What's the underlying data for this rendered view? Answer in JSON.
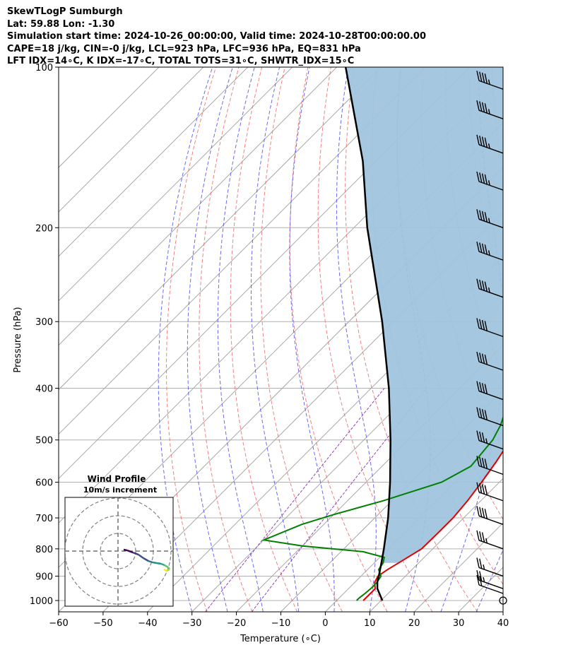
{
  "header": {
    "line1": "SkewTLogP Sumburgh",
    "line2": "Lat: 59.88   Lon: -1.30",
    "line3": "Simulation start time: 2024-10-26_00:00:00, Valid time: 2024-10-28T00:00:00.00",
    "line4": "CAPE=18 j/kg, CIN=-0 j/kg, LCL=923 hPa, LFC=936 hPa, EQ=831 hPa",
    "line5": "LFT IDX=14∘C, K IDX=-17∘C, TOTAL TOTS=31∘C, SHWTR_IDX=15∘C"
  },
  "chart_data": {
    "type": "skewt",
    "xlabel": "Temperature (∘C)",
    "ylabel": "Pressure (hPa)",
    "xlim": [
      -60,
      40
    ],
    "ylim": [
      1050,
      100
    ],
    "log_y": true,
    "grid": true,
    "x_ticks": [
      "−60",
      "−50",
      "−40",
      "−30",
      "−20",
      "−10",
      "0",
      "10",
      "20",
      "30",
      "40"
    ],
    "x_tick_values": [
      -60,
      -50,
      -40,
      -30,
      -20,
      -10,
      0,
      10,
      20,
      30,
      40
    ],
    "y_ticks": [
      1000,
      900,
      800,
      700,
      600,
      500,
      400,
      300,
      200,
      100
    ],
    "temperature": {
      "color": "#e00000",
      "points": [
        [
          1000,
          6.0
        ],
        [
          950,
          6.0
        ],
        [
          925,
          4.5
        ],
        [
          900,
          3.8
        ],
        [
          875,
          4.5
        ],
        [
          850,
          5.5
        ],
        [
          800,
          7.5
        ],
        [
          750,
          7.6
        ],
        [
          700,
          7.6
        ],
        [
          650,
          7.0
        ],
        [
          600,
          6.0
        ],
        [
          550,
          4.7
        ],
        [
          500,
          3.0
        ],
        [
          450,
          1.0
        ],
        [
          400,
          -1.5
        ],
        [
          350,
          -4.5
        ],
        [
          300,
          -8.5
        ],
        [
          270,
          -10.0
        ],
        [
          250,
          -9.5
        ],
        [
          220,
          -7.0
        ],
        [
          200,
          -5.0
        ],
        [
          180,
          -2.0
        ],
        [
          160,
          0.0
        ],
        [
          150,
          0.0
        ],
        [
          140,
          1.0
        ],
        [
          130,
          3.0
        ],
        [
          120,
          6.5
        ],
        [
          110,
          9.0
        ],
        [
          100,
          10.5
        ]
      ]
    },
    "dewpoint": {
      "color": "#008000",
      "points": [
        [
          1000,
          4.5
        ],
        [
          990,
          4.5
        ],
        [
          970,
          4.8
        ],
        [
          950,
          5.0
        ],
        [
          925,
          5.0
        ],
        [
          900,
          4.5
        ],
        [
          875,
          2.5
        ],
        [
          850,
          2.0
        ],
        [
          830,
          1.0
        ],
        [
          810,
          -5.0
        ],
        [
          790,
          -20.0
        ],
        [
          770,
          -30.0
        ],
        [
          720,
          -25.0
        ],
        [
          690,
          -20.0
        ],
        [
          650,
          -12.0
        ],
        [
          600,
          -3.0
        ],
        [
          560,
          0.0
        ],
        [
          500,
          -1.0
        ],
        [
          470,
          -2.5
        ],
        [
          450,
          -4.0
        ],
        [
          430,
          -6.0
        ],
        [
          400,
          -9.5
        ],
        [
          380,
          -10.5
        ],
        [
          360,
          -11.0
        ],
        [
          350,
          -11.5
        ],
        [
          330,
          -14.5
        ],
        [
          310,
          -19.0
        ],
        [
          300,
          -21.5
        ],
        [
          280,
          -23.5
        ],
        [
          250,
          -22.5
        ],
        [
          220,
          -20.0
        ],
        [
          200,
          -18.0
        ],
        [
          180,
          -16.5
        ],
        [
          160,
          -16.5
        ],
        [
          140,
          -18.0
        ],
        [
          130,
          -18.5
        ],
        [
          120,
          -15.0
        ],
        [
          110,
          -11.0
        ],
        [
          100,
          -7.5
        ]
      ]
    },
    "parcel": {
      "color": "#000000",
      "points": [
        [
          1000,
          10.3
        ],
        [
          950,
          6.5
        ],
        [
          923,
          5.0
        ],
        [
          900,
          4.0
        ],
        [
          850,
          1.6
        ],
        [
          800,
          -1.0
        ],
        [
          700,
          -7.0
        ],
        [
          600,
          -14.6
        ],
        [
          500,
          -24.0
        ],
        [
          400,
          -36.0
        ],
        [
          300,
          -52.5
        ],
        [
          200,
          -77.0
        ],
        [
          150,
          -93.0
        ],
        [
          100,
          -118.0
        ]
      ]
    },
    "cape_shading_color": "#a0c4de",
    "wind_barbs": [
      {
        "p": 1000,
        "speed_kt": 0
      },
      {
        "p": 970,
        "speed_kt": 20
      },
      {
        "p": 950,
        "speed_kt": 25
      },
      {
        "p": 900,
        "speed_kt": 25
      },
      {
        "p": 800,
        "speed_kt": 35
      },
      {
        "p": 720,
        "speed_kt": 40
      },
      {
        "p": 650,
        "speed_kt": 40
      },
      {
        "p": 580,
        "speed_kt": 40
      },
      {
        "p": 520,
        "speed_kt": 35
      },
      {
        "p": 470,
        "speed_kt": 40
      },
      {
        "p": 420,
        "speed_kt": 40
      },
      {
        "p": 370,
        "speed_kt": 40
      },
      {
        "p": 320,
        "speed_kt": 40
      },
      {
        "p": 270,
        "speed_kt": 45
      },
      {
        "p": 230,
        "speed_kt": 45
      },
      {
        "p": 200,
        "speed_kt": 45
      },
      {
        "p": 170,
        "speed_kt": 45
      },
      {
        "p": 145,
        "speed_kt": 45
      },
      {
        "p": 125,
        "speed_kt": 45
      },
      {
        "p": 110,
        "speed_kt": 45
      }
    ],
    "inset": {
      "title": "Wind Profile",
      "subtitle": "10m/s increment"
    }
  }
}
